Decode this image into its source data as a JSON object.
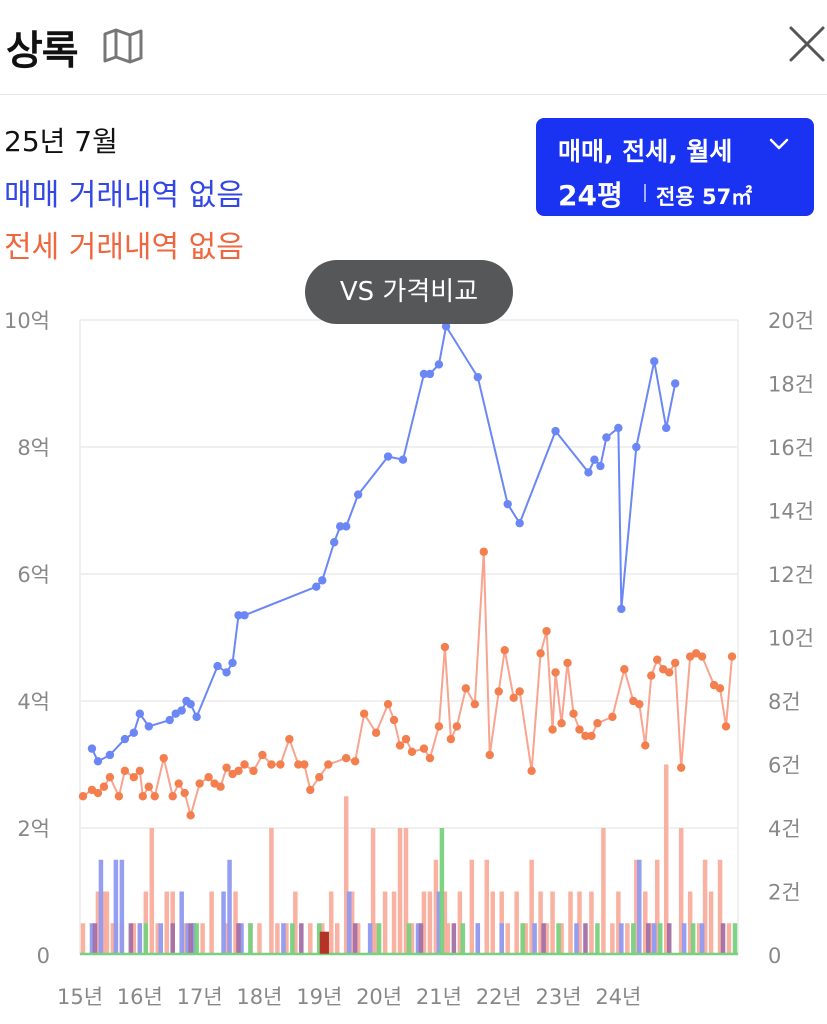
{
  "header": {
    "title": "상록",
    "map_icon": "map-icon",
    "close_icon": "close-icon"
  },
  "summary": {
    "month": "25년 7월",
    "sale_status": "매매 거래내역 없음",
    "lease_status": "전세 거래내역 없음"
  },
  "filter": {
    "types": "매매, 전세, 월세",
    "pyeong": "24평",
    "exclusive": "전용 57㎡",
    "icon": "chevron-down-icon"
  },
  "compare_button": "VS 가격비교",
  "colors": {
    "sale": "#6b87f5",
    "lease": "#f47f4e",
    "lease_line": "#f8a48f",
    "volume_lease": "#f9ad9c",
    "volume_sale": "#8f9af1",
    "volume_mixed": "#a26fa7",
    "volume_monthly": "#77d17e",
    "accent": "#1a33f2"
  },
  "chart_data": {
    "type": "line",
    "x_ticks": [
      "15년",
      "16년",
      "17년",
      "18년",
      "19년",
      "20년",
      "21년",
      "22년",
      "23년",
      "24년"
    ],
    "y_left_ticks": [
      "0",
      "2억",
      "4억",
      "6억",
      "8억",
      "10억"
    ],
    "y_right_ticks": [
      "0",
      "2건",
      "4건",
      "6건",
      "8건",
      "10건",
      "12건",
      "14건",
      "16건",
      "18건",
      "20건"
    ],
    "y_left_range": [
      0,
      10
    ],
    "y_left_unit": "억",
    "y_right_range": [
      0,
      20
    ],
    "y_right_unit": "건",
    "grid": true,
    "series": [
      {
        "key": "sale",
        "points": [
          [
            2015.2,
            3.25
          ],
          [
            2015.3,
            3.05
          ],
          [
            2015.5,
            3.15
          ],
          [
            2015.75,
            3.4
          ],
          [
            2015.9,
            3.5
          ],
          [
            2016.0,
            3.8
          ],
          [
            2016.15,
            3.6
          ],
          [
            2016.5,
            3.7
          ],
          [
            2016.6,
            3.8
          ],
          [
            2016.7,
            3.85
          ],
          [
            2016.78,
            4.0
          ],
          [
            2016.85,
            3.95
          ],
          [
            2016.95,
            3.75
          ],
          [
            2017.3,
            4.55
          ],
          [
            2017.45,
            4.45
          ],
          [
            2017.55,
            4.6
          ],
          [
            2017.65,
            5.35
          ],
          [
            2017.75,
            5.35
          ],
          [
            2018.95,
            5.8
          ],
          [
            2019.05,
            5.9
          ],
          [
            2019.25,
            6.5
          ],
          [
            2019.35,
            6.75
          ],
          [
            2019.45,
            6.75
          ],
          [
            2019.65,
            7.25
          ],
          [
            2020.15,
            7.85
          ],
          [
            2020.4,
            7.8
          ],
          [
            2020.75,
            9.15
          ],
          [
            2020.85,
            9.15
          ],
          [
            2021.0,
            9.3
          ],
          [
            2021.12,
            9.9
          ],
          [
            2021.65,
            9.1
          ],
          [
            2022.15,
            7.1
          ],
          [
            2022.35,
            6.8
          ],
          [
            2022.95,
            8.25
          ],
          [
            2023.5,
            7.6
          ],
          [
            2023.6,
            7.8
          ],
          [
            2023.7,
            7.7
          ],
          [
            2023.8,
            8.15
          ],
          [
            2024.0,
            8.3
          ],
          [
            2024.05,
            5.45
          ],
          [
            2024.3,
            8.0
          ],
          [
            2024.6,
            9.35
          ],
          [
            2024.8,
            8.3
          ],
          [
            2024.95,
            9.0
          ]
        ]
      },
      {
        "key": "lease",
        "points": [
          [
            2015.05,
            2.5
          ],
          [
            2015.2,
            2.6
          ],
          [
            2015.3,
            2.55
          ],
          [
            2015.4,
            2.65
          ],
          [
            2015.5,
            2.8
          ],
          [
            2015.65,
            2.5
          ],
          [
            2015.75,
            2.9
          ],
          [
            2015.9,
            2.8
          ],
          [
            2016.0,
            2.9
          ],
          [
            2016.05,
            2.5
          ],
          [
            2016.15,
            2.65
          ],
          [
            2016.25,
            2.5
          ],
          [
            2016.4,
            3.1
          ],
          [
            2016.55,
            2.5
          ],
          [
            2016.65,
            2.7
          ],
          [
            2016.75,
            2.55
          ],
          [
            2016.85,
            2.2
          ],
          [
            2017.0,
            2.7
          ],
          [
            2017.15,
            2.8
          ],
          [
            2017.25,
            2.7
          ],
          [
            2017.35,
            2.65
          ],
          [
            2017.45,
            2.95
          ],
          [
            2017.55,
            2.85
          ],
          [
            2017.65,
            2.9
          ],
          [
            2017.75,
            3.0
          ],
          [
            2017.9,
            2.9
          ],
          [
            2018.05,
            3.15
          ],
          [
            2018.2,
            3.0
          ],
          [
            2018.35,
            3.0
          ],
          [
            2018.5,
            3.4
          ],
          [
            2018.65,
            3.0
          ],
          [
            2018.75,
            3.0
          ],
          [
            2018.85,
            2.6
          ],
          [
            2019.0,
            2.8
          ],
          [
            2019.15,
            3.0
          ],
          [
            2019.45,
            3.1
          ],
          [
            2019.6,
            3.05
          ],
          [
            2019.75,
            3.8
          ],
          [
            2019.95,
            3.5
          ],
          [
            2020.15,
            3.95
          ],
          [
            2020.25,
            3.7
          ],
          [
            2020.35,
            3.3
          ],
          [
            2020.45,
            3.4
          ],
          [
            2020.55,
            3.2
          ],
          [
            2020.75,
            3.25
          ],
          [
            2020.85,
            3.1
          ],
          [
            2021.0,
            3.6
          ],
          [
            2021.1,
            4.85
          ],
          [
            2021.2,
            3.4
          ],
          [
            2021.3,
            3.6
          ],
          [
            2021.45,
            4.2
          ],
          [
            2021.6,
            3.95
          ],
          [
            2021.75,
            6.35
          ],
          [
            2021.85,
            3.15
          ],
          [
            2022.0,
            4.15
          ],
          [
            2022.1,
            4.8
          ],
          [
            2022.25,
            4.05
          ],
          [
            2022.35,
            4.15
          ],
          [
            2022.55,
            2.9
          ],
          [
            2022.7,
            4.75
          ],
          [
            2022.8,
            5.1
          ],
          [
            2022.9,
            3.55
          ],
          [
            2022.95,
            4.45
          ],
          [
            2023.05,
            3.65
          ],
          [
            2023.15,
            4.6
          ],
          [
            2023.25,
            3.8
          ],
          [
            2023.35,
            3.55
          ],
          [
            2023.45,
            3.45
          ],
          [
            2023.55,
            3.45
          ],
          [
            2023.65,
            3.65
          ],
          [
            2023.9,
            3.75
          ],
          [
            2024.1,
            4.5
          ],
          [
            2024.25,
            4.0
          ],
          [
            2024.35,
            3.95
          ],
          [
            2024.45,
            3.3
          ],
          [
            2024.55,
            4.4
          ],
          [
            2024.65,
            4.65
          ],
          [
            2024.75,
            4.5
          ],
          [
            2024.85,
            4.45
          ],
          [
            2024.95,
            4.6
          ],
          [
            2025.05,
            2.95
          ],
          [
            2025.2,
            4.7
          ],
          [
            2025.3,
            4.75
          ],
          [
            2025.4,
            4.7
          ],
          [
            2025.6,
            4.25
          ],
          [
            2025.7,
            4.2
          ],
          [
            2025.8,
            3.6
          ],
          [
            2025.9,
            4.7
          ]
        ]
      }
    ],
    "volume": {
      "unit": "건",
      "lease": [
        [
          2015.05,
          1
        ],
        [
          2015.3,
          2
        ],
        [
          2015.4,
          2
        ],
        [
          2015.45,
          2
        ],
        [
          2015.55,
          1
        ],
        [
          2015.6,
          1
        ],
        [
          2015.7,
          1
        ],
        [
          2015.9,
          1
        ],
        [
          2016.0,
          1
        ],
        [
          2016.1,
          2
        ],
        [
          2016.2,
          4
        ],
        [
          2016.3,
          1
        ],
        [
          2016.45,
          2
        ],
        [
          2016.55,
          2
        ],
        [
          2016.75,
          1
        ],
        [
          2016.9,
          1
        ],
        [
          2017.05,
          1
        ],
        [
          2017.2,
          2
        ],
        [
          2017.45,
          1
        ],
        [
          2017.6,
          2
        ],
        [
          2017.85,
          1
        ],
        [
          2018.0,
          1
        ],
        [
          2018.2,
          4
        ],
        [
          2018.3,
          1
        ],
        [
          2018.45,
          1
        ],
        [
          2018.6,
          2
        ],
        [
          2018.85,
          1
        ],
        [
          2019.05,
          1
        ],
        [
          2019.2,
          2
        ],
        [
          2019.3,
          1
        ],
        [
          2019.45,
          5
        ],
        [
          2019.55,
          2
        ],
        [
          2019.65,
          1
        ],
        [
          2019.9,
          4
        ],
        [
          2019.95,
          1
        ],
        [
          2020.1,
          2
        ],
        [
          2020.25,
          2
        ],
        [
          2020.35,
          4
        ],
        [
          2020.45,
          4
        ],
        [
          2020.55,
          1
        ],
        [
          2020.75,
          2
        ],
        [
          2020.85,
          2
        ],
        [
          2020.95,
          3
        ],
        [
          2021.1,
          2
        ],
        [
          2021.15,
          1
        ],
        [
          2021.35,
          2
        ],
        [
          2021.55,
          3
        ],
        [
          2021.65,
          1
        ],
        [
          2021.8,
          3
        ],
        [
          2021.9,
          2
        ],
        [
          2022.05,
          2
        ],
        [
          2022.15,
          1
        ],
        [
          2022.3,
          2
        ],
        [
          2022.45,
          1
        ],
        [
          2022.55,
          3
        ],
        [
          2022.7,
          2
        ],
        [
          2022.8,
          1
        ],
        [
          2022.9,
          2
        ],
        [
          2023.05,
          1
        ],
        [
          2023.2,
          2
        ],
        [
          2023.35,
          2
        ],
        [
          2023.55,
          2
        ],
        [
          2023.75,
          4
        ],
        [
          2023.9,
          1
        ],
        [
          2024.0,
          2
        ],
        [
          2024.15,
          1
        ],
        [
          2024.3,
          3
        ],
        [
          2024.45,
          2
        ],
        [
          2024.55,
          1
        ],
        [
          2024.65,
          3
        ],
        [
          2024.8,
          6
        ],
        [
          2025.05,
          4
        ],
        [
          2025.2,
          2
        ],
        [
          2025.35,
          1
        ],
        [
          2025.45,
          3
        ],
        [
          2025.55,
          2
        ],
        [
          2025.7,
          3
        ],
        [
          2025.85,
          1
        ]
      ],
      "sale": [
        [
          2015.2,
          1
        ],
        [
          2015.35,
          3
        ],
        [
          2015.6,
          3
        ],
        [
          2015.7,
          3
        ],
        [
          2016.0,
          1
        ],
        [
          2016.35,
          1
        ],
        [
          2016.7,
          2
        ],
        [
          2016.8,
          1
        ],
        [
          2016.9,
          1
        ],
        [
          2017.4,
          2
        ],
        [
          2017.5,
          3
        ],
        [
          2017.7,
          1
        ],
        [
          2018.4,
          1
        ],
        [
          2019.5,
          2
        ],
        [
          2019.85,
          1
        ],
        [
          2020.65,
          1
        ],
        [
          2021.0,
          2
        ],
        [
          2021.65,
          1
        ],
        [
          2022.05,
          1
        ],
        [
          2022.6,
          1
        ],
        [
          2023.3,
          1
        ],
        [
          2024.05,
          1
        ],
        [
          2024.35,
          3
        ],
        [
          2024.6,
          1
        ],
        [
          2025.1,
          1
        ],
        [
          2025.4,
          1
        ]
      ],
      "mixed": [
        [
          2015.25,
          1
        ],
        [
          2015.85,
          1
        ],
        [
          2016.55,
          1
        ],
        [
          2016.85,
          1
        ],
        [
          2017.65,
          1
        ],
        [
          2018.7,
          1
        ],
        [
          2019.6,
          1
        ],
        [
          2020.7,
          1
        ],
        [
          2021.25,
          1
        ],
        [
          2022.75,
          1
        ],
        [
          2023.45,
          1
        ],
        [
          2024.5,
          1
        ],
        [
          2024.85,
          1
        ],
        [
          2025.75,
          1
        ]
      ],
      "monthly": [
        [
          2016.1,
          1
        ],
        [
          2016.95,
          1
        ],
        [
          2017.85,
          1
        ],
        [
          2018.55,
          1
        ],
        [
          2019.0,
          1
        ],
        [
          2020.0,
          1
        ],
        [
          2020.5,
          1
        ],
        [
          2021.05,
          4
        ],
        [
          2021.4,
          1
        ],
        [
          2022.4,
          1
        ],
        [
          2023.0,
          1
        ],
        [
          2023.65,
          1
        ],
        [
          2024.25,
          1
        ],
        [
          2024.7,
          1
        ],
        [
          2025.25,
          1
        ],
        [
          2025.95,
          1
        ]
      ]
    },
    "annotation_markers": [
      [
        2019.05,
        0.02
      ],
      [
        2019.12,
        0.02
      ]
    ]
  }
}
